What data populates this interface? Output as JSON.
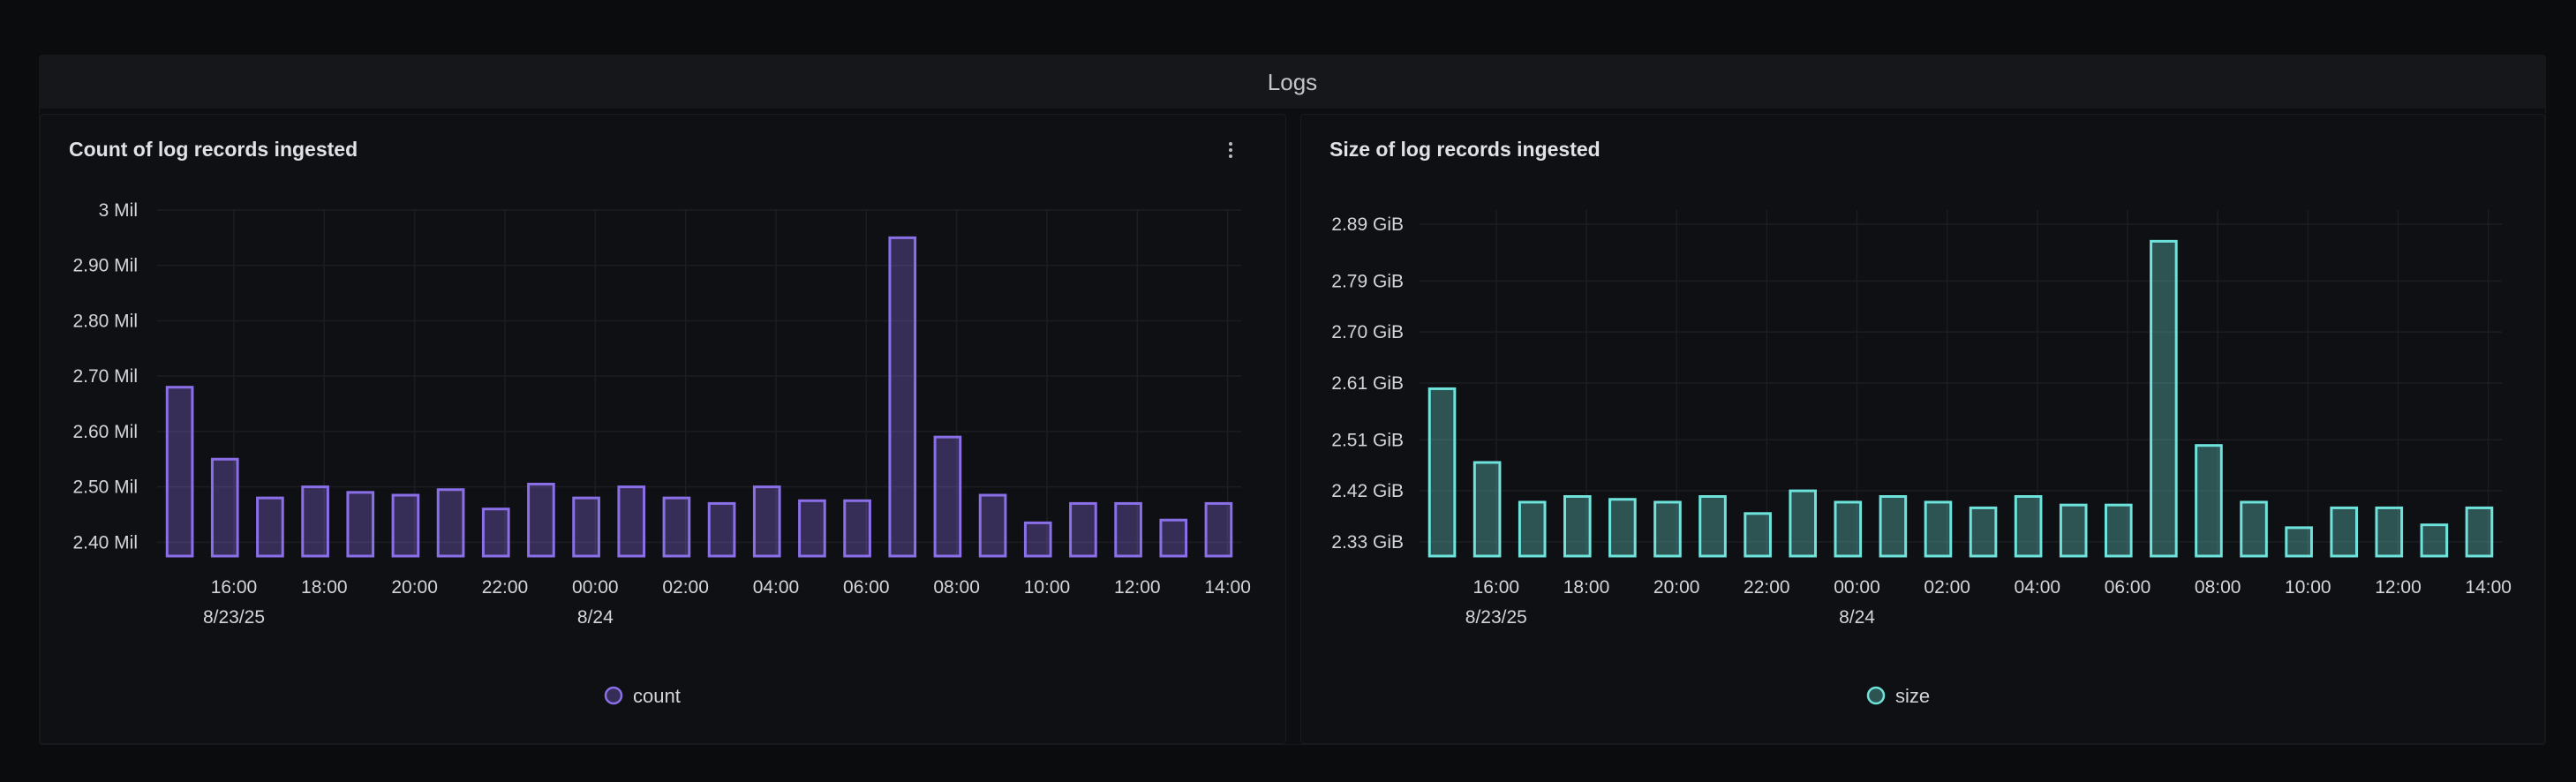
{
  "section": {
    "title": "Logs"
  },
  "chart_data": [
    {
      "type": "bar",
      "title": "Count of log records ingested",
      "series": [
        {
          "name": "count",
          "color": "#8b6fe8",
          "values": [
            2.68,
            2.55,
            2.48,
            2.5,
            2.49,
            2.485,
            2.495,
            2.46,
            2.505,
            2.48,
            2.5,
            2.48,
            2.47,
            2.5,
            2.475,
            2.475,
            2.95,
            2.59,
            2.485,
            2.435,
            2.47,
            2.47,
            2.44,
            2.47
          ]
        }
      ],
      "y_ticks": [
        {
          "v": 3.0,
          "label": "3 Mil"
        },
        {
          "v": 2.9,
          "label": "2.90 Mil"
        },
        {
          "v": 2.8,
          "label": "2.80 Mil"
        },
        {
          "v": 2.7,
          "label": "2.70 Mil"
        },
        {
          "v": 2.6,
          "label": "2.60 Mil"
        },
        {
          "v": 2.5,
          "label": "2.50 Mil"
        },
        {
          "v": 2.4,
          "label": "2.40 Mil"
        }
      ],
      "ylim": [
        2.375,
        3.0
      ],
      "x_ticks": [
        {
          "i": 1.7,
          "label": "16:00",
          "sub": "8/23/25"
        },
        {
          "i": 3.7,
          "label": "18:00"
        },
        {
          "i": 5.7,
          "label": "20:00"
        },
        {
          "i": 7.7,
          "label": "22:00"
        },
        {
          "i": 9.7,
          "label": "00:00",
          "sub": "8/24"
        },
        {
          "i": 11.7,
          "label": "02:00"
        },
        {
          "i": 13.7,
          "label": "04:00"
        },
        {
          "i": 15.7,
          "label": "06:00"
        },
        {
          "i": 17.7,
          "label": "08:00"
        },
        {
          "i": 19.7,
          "label": "10:00"
        },
        {
          "i": 21.7,
          "label": "12:00"
        },
        {
          "i": 23.7,
          "label": "14:00"
        }
      ],
      "legend": "bottom-center",
      "grid": true
    },
    {
      "type": "bar",
      "title": "Size of log records ingested",
      "series": [
        {
          "name": "size",
          "color": "#6ee3dc",
          "values": [
            2.6,
            2.47,
            2.4,
            2.41,
            2.405,
            2.4,
            2.41,
            2.38,
            2.42,
            2.4,
            2.41,
            2.4,
            2.39,
            2.41,
            2.395,
            2.395,
            2.86,
            2.5,
            2.4,
            2.355,
            2.39,
            2.39,
            2.36,
            2.39
          ]
        }
      ],
      "y_ticks": [
        {
          "v": 2.89,
          "label": "2.89 GiB"
        },
        {
          "v": 2.79,
          "label": "2.79 GiB"
        },
        {
          "v": 2.7,
          "label": "2.70 GiB"
        },
        {
          "v": 2.61,
          "label": "2.61 GiB"
        },
        {
          "v": 2.51,
          "label": "2.51 GiB"
        },
        {
          "v": 2.42,
          "label": "2.42 GiB"
        },
        {
          "v": 2.33,
          "label": "2.33 GiB"
        }
      ],
      "ylim": [
        2.305,
        2.915
      ],
      "x_ticks": [
        {
          "i": 1.7,
          "label": "16:00",
          "sub": "8/23/25"
        },
        {
          "i": 3.7,
          "label": "18:00"
        },
        {
          "i": 5.7,
          "label": "20:00"
        },
        {
          "i": 7.7,
          "label": "22:00"
        },
        {
          "i": 9.7,
          "label": "00:00",
          "sub": "8/24"
        },
        {
          "i": 11.7,
          "label": "02:00"
        },
        {
          "i": 13.7,
          "label": "04:00"
        },
        {
          "i": 15.7,
          "label": "06:00"
        },
        {
          "i": 17.7,
          "label": "08:00"
        },
        {
          "i": 19.7,
          "label": "10:00"
        },
        {
          "i": 21.7,
          "label": "12:00"
        },
        {
          "i": 23.7,
          "label": "14:00"
        }
      ],
      "legend": "bottom-center",
      "grid": true
    }
  ]
}
